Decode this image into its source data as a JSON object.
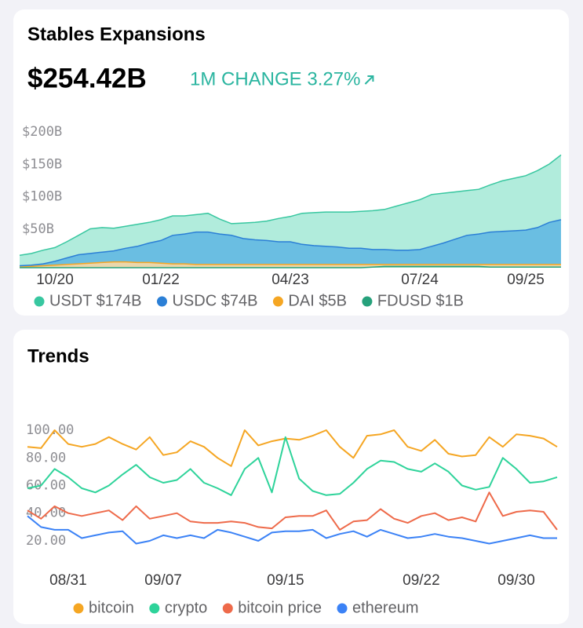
{
  "chart_data": [
    {
      "type": "area",
      "title": "Stables Expansions",
      "headline": "$254.42B",
      "change": "1M CHANGE 3.27%",
      "change_color": "#2bb5a0",
      "categories": [
        null,
        null,
        null,
        "10/20",
        null,
        null,
        null,
        null,
        null,
        null,
        null,
        null,
        "01/22",
        null,
        null,
        null,
        null,
        null,
        null,
        null,
        null,
        null,
        null,
        "04/23",
        null,
        null,
        null,
        null,
        null,
        null,
        null,
        null,
        null,
        null,
        "07/24",
        null,
        null,
        null,
        null,
        null,
        null,
        null,
        null,
        "09/25",
        null,
        null,
        null
      ],
      "series": [
        {
          "name": "USDT $174B",
          "color": "#38c7a0",
          "fill": "#a8ead8",
          "values": [
            19,
            22,
            27,
            31,
            40,
            50,
            60,
            62,
            61,
            64,
            67,
            70,
            74,
            80,
            80,
            82,
            84,
            75,
            68,
            69,
            70,
            72,
            76,
            79,
            84,
            85,
            86,
            86,
            86,
            87,
            88,
            90,
            95,
            100,
            105,
            113,
            115,
            117,
            119,
            121,
            128,
            134,
            138,
            142,
            150,
            160,
            174
          ]
        },
        {
          "name": "USDC $74B",
          "color": "#2b7fd6",
          "fill": "#63b9e2",
          "values": [
            3,
            4,
            6,
            10,
            15,
            20,
            22,
            24,
            26,
            30,
            33,
            38,
            42,
            50,
            52,
            55,
            55,
            52,
            50,
            45,
            43,
            42,
            40,
            40,
            36,
            34,
            33,
            32,
            30,
            30,
            28,
            28,
            27,
            27,
            28,
            33,
            38,
            44,
            50,
            52,
            55,
            56,
            57,
            58,
            62,
            70,
            74
          ]
        },
        {
          "name": "DAI $5B",
          "color": "#f5a623",
          "fill": "#f8d9a6",
          "values": [
            1,
            2,
            3,
            4,
            5,
            6,
            7,
            8,
            9,
            9,
            8,
            8,
            7,
            6,
            6,
            5,
            5,
            5,
            5,
            5,
            5,
            5,
            5,
            5,
            5,
            5,
            5,
            5,
            5,
            5,
            5,
            5,
            5,
            5,
            5,
            5,
            5,
            5,
            5,
            5,
            5,
            5,
            5,
            5,
            5,
            5,
            5
          ]
        },
        {
          "name": "FDUSD $1B",
          "color": "#26a17b",
          "fill": "#7fcfb3",
          "values": [
            0,
            0,
            0,
            0,
            0,
            0,
            0,
            0,
            0,
            0,
            0,
            0,
            0,
            0,
            0,
            0,
            0,
            0,
            0,
            0,
            0,
            0,
            0,
            0,
            0,
            0,
            0,
            0,
            0,
            0,
            1,
            2,
            2,
            2,
            2,
            2,
            2,
            2,
            2,
            2,
            1,
            1,
            1,
            1,
            1,
            1,
            1
          ]
        }
      ],
      "ylim": [
        0,
        220
      ],
      "yticks": [
        {
          "value": 50,
          "label": "$50B"
        },
        {
          "value": 100,
          "label": "$100B"
        },
        {
          "value": 150,
          "label": "$150B"
        },
        {
          "value": 200,
          "label": "$200B"
        }
      ],
      "legend": "bottom"
    },
    {
      "type": "line",
      "title": "Trends",
      "categories": [
        null,
        null,
        null,
        "08/31",
        null,
        null,
        null,
        null,
        null,
        null,
        "09/07",
        null,
        null,
        null,
        null,
        null,
        null,
        null,
        null,
        "09/15",
        null,
        null,
        null,
        null,
        null,
        null,
        null,
        null,
        null,
        "09/22",
        null,
        null,
        null,
        null,
        null,
        null,
        "09/30",
        null,
        null,
        null
      ],
      "series": [
        {
          "name": "bitcoin",
          "color": "#f5a623",
          "values": [
            88,
            87,
            100,
            90,
            88,
            90,
            95,
            90,
            86,
            95,
            82,
            84,
            92,
            88,
            80,
            74,
            100,
            89,
            92,
            94,
            93,
            96,
            100,
            88,
            80,
            96,
            97,
            100,
            88,
            85,
            93,
            83,
            81,
            82,
            95,
            88,
            97,
            96,
            94,
            88
          ]
        },
        {
          "name": "crypto",
          "color": "#2ed39a",
          "values": [
            58,
            60,
            72,
            66,
            58,
            55,
            60,
            68,
            75,
            66,
            62,
            64,
            72,
            62,
            58,
            53,
            72,
            80,
            55,
            95,
            65,
            56,
            53,
            54,
            62,
            72,
            78,
            77,
            72,
            70,
            76,
            70,
            60,
            57,
            59,
            80,
            72,
            62,
            63,
            66
          ]
        },
        {
          "name": "bitcoin price",
          "color": "#ee6a4a",
          "values": [
            42,
            36,
            45,
            40,
            38,
            40,
            42,
            35,
            45,
            36,
            38,
            40,
            34,
            33,
            33,
            34,
            33,
            30,
            29,
            37,
            38,
            38,
            42,
            28,
            34,
            35,
            43,
            36,
            33,
            38,
            40,
            35,
            37,
            34,
            55,
            38,
            41,
            42,
            41,
            28
          ]
        },
        {
          "name": "ethereum",
          "color": "#3b82f6",
          "values": [
            38,
            30,
            28,
            28,
            22,
            24,
            26,
            27,
            18,
            20,
            24,
            22,
            24,
            22,
            28,
            26,
            23,
            20,
            26,
            27,
            27,
            28,
            22,
            25,
            27,
            23,
            28,
            25,
            22,
            23,
            25,
            23,
            22,
            20,
            18,
            20,
            22,
            24,
            22,
            22
          ]
        }
      ],
      "ylim": [
        15,
        105
      ],
      "yticks": [
        {
          "value": 20,
          "label": "20.00"
        },
        {
          "value": 40,
          "label": "40.00"
        },
        {
          "value": 60,
          "label": "60.00"
        },
        {
          "value": 80,
          "label": "80.00"
        },
        {
          "value": 100,
          "label": "100.00"
        }
      ],
      "legend": "bottom"
    }
  ]
}
